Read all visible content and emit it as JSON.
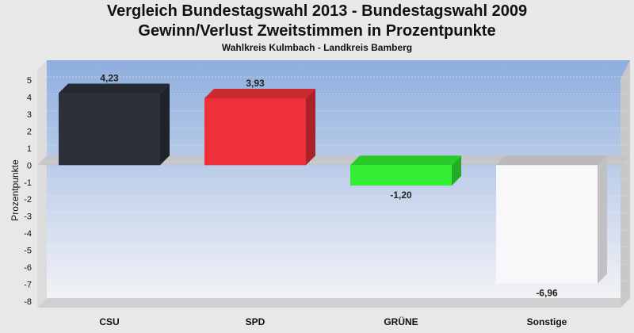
{
  "chart_data": {
    "type": "bar",
    "title": "Vergleich Bundestagswahl 2013 - Bundestagswahl 2009",
    "subtitle": "Gewinn/Verlust Zweitstimmen in Prozentpunkte",
    "subtitle2": "Wahlkreis Kulmbach - Landkreis Bamberg",
    "xlabel": "",
    "ylabel": "Prozentpunkte",
    "categories": [
      "CSU",
      "SPD",
      "GRÜNE",
      "Sonstige"
    ],
    "values": [
      4.23,
      3.93,
      -1.2,
      -6.96
    ],
    "value_labels": [
      "4,23",
      "3,93",
      "-1,20",
      "-6,96"
    ],
    "colors": [
      "#2b303a",
      "#ee3038",
      "#33ee33",
      "#f8f8fa"
    ],
    "ylim": [
      -8,
      5
    ],
    "yticks": [
      5,
      4,
      3,
      2,
      1,
      0,
      -1,
      -2,
      -3,
      -4,
      -5,
      -6,
      -7,
      -8
    ],
    "grid": true,
    "legend": "none"
  }
}
